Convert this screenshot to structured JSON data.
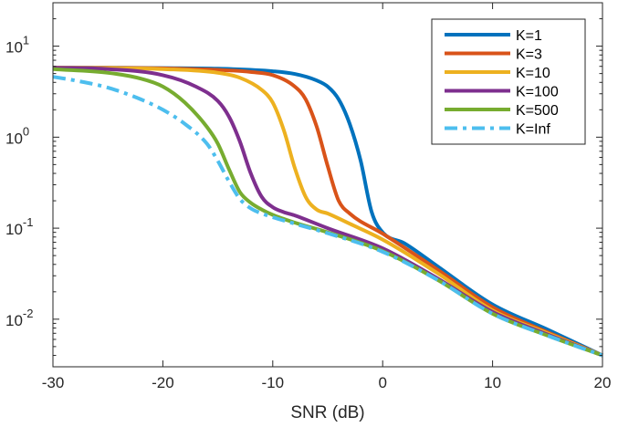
{
  "chart_data": {
    "type": "line",
    "title": "",
    "xlabel": "SNR (dB)",
    "ylabel": "",
    "xlim": [
      -30,
      20
    ],
    "ylim": [
      0.003,
      30
    ],
    "yscale": "log",
    "grid": false,
    "legend_position": "top-right",
    "x_ticks": [
      {
        "value": -30,
        "label": "-30"
      },
      {
        "value": -20,
        "label": "-20"
      },
      {
        "value": -10,
        "label": "-10"
      },
      {
        "value": 0,
        "label": "0"
      },
      {
        "value": 10,
        "label": "10"
      },
      {
        "value": 20,
        "label": "20"
      }
    ],
    "y_ticks": [
      {
        "value": 10,
        "base": "10",
        "exp": "1"
      },
      {
        "value": 1,
        "base": "10",
        "exp": "0"
      },
      {
        "value": 0.1,
        "base": "10",
        "exp": "-1"
      },
      {
        "value": 0.01,
        "base": "10",
        "exp": "-2"
      }
    ],
    "series": [
      {
        "name": "K=1",
        "color": "#0072BD",
        "dash": "solid",
        "x": [
          -30,
          -25,
          -20,
          -15,
          -10,
          -8,
          -6,
          -5,
          -4,
          -3,
          -2,
          -1,
          0,
          2,
          5,
          10,
          15,
          20
        ],
        "y": [
          5.8,
          5.8,
          5.75,
          5.65,
          5.3,
          4.95,
          4.2,
          3.6,
          2.6,
          1.4,
          0.55,
          0.15,
          0.09,
          0.068,
          0.038,
          0.0145,
          0.0077,
          0.004
        ]
      },
      {
        "name": "K=3",
        "color": "#D95319",
        "dash": "solid",
        "x": [
          -30,
          -25,
          -20,
          -15,
          -12,
          -10,
          -8,
          -7,
          -6,
          -5,
          -4,
          -3,
          0,
          5,
          10,
          15,
          20
        ],
        "y": [
          5.8,
          5.78,
          5.7,
          5.5,
          5.2,
          4.8,
          3.6,
          2.6,
          1.3,
          0.48,
          0.2,
          0.145,
          0.087,
          0.035,
          0.0135,
          0.0072,
          0.004
        ]
      },
      {
        "name": "K=10",
        "color": "#EDB120",
        "dash": "solid",
        "x": [
          -30,
          -25,
          -20,
          -15,
          -13,
          -11,
          -10,
          -9,
          -8,
          -7,
          -6,
          -5,
          -3,
          0,
          5,
          10,
          15,
          20
        ],
        "y": [
          5.8,
          5.75,
          5.6,
          5.1,
          4.5,
          3.3,
          2.4,
          1.2,
          0.46,
          0.22,
          0.16,
          0.145,
          0.112,
          0.075,
          0.032,
          0.0125,
          0.007,
          0.004
        ]
      },
      {
        "name": "K=100",
        "color": "#7E2F8E",
        "dash": "solid",
        "x": [
          -30,
          -25,
          -20,
          -17,
          -15,
          -14,
          -13,
          -12,
          -11,
          -10,
          -9,
          -8,
          -5,
          0,
          5,
          10,
          15,
          20
        ],
        "y": [
          5.8,
          5.6,
          4.8,
          3.6,
          2.5,
          1.7,
          0.9,
          0.4,
          0.22,
          0.17,
          0.15,
          0.138,
          0.1,
          0.06,
          0.028,
          0.012,
          0.0068,
          0.004
        ]
      },
      {
        "name": "K=500",
        "color": "#77AC30",
        "dash": "solid",
        "x": [
          -30,
          -25,
          -22,
          -20,
          -18,
          -16,
          -15,
          -14,
          -13,
          -12,
          -11,
          -10,
          -8,
          -5,
          0,
          5,
          10,
          15,
          20
        ],
        "y": [
          5.6,
          5.1,
          4.4,
          3.6,
          2.4,
          1.3,
          0.85,
          0.45,
          0.25,
          0.19,
          0.16,
          0.14,
          0.115,
          0.09,
          0.056,
          0.027,
          0.0115,
          0.0066,
          0.004
        ]
      },
      {
        "name": "K=Inf",
        "color": "#4DBEEE",
        "dash": "dashdot",
        "x": [
          -30,
          -28,
          -25,
          -22,
          -20,
          -18,
          -16,
          -15,
          -14,
          -13,
          -12,
          -11,
          -10,
          -8,
          -5,
          0,
          5,
          10,
          15,
          20
        ],
        "y": [
          4.6,
          4.2,
          3.5,
          2.6,
          2.0,
          1.4,
          0.85,
          0.55,
          0.33,
          0.21,
          0.165,
          0.145,
          0.132,
          0.112,
          0.088,
          0.055,
          0.027,
          0.0115,
          0.0066,
          0.004
        ]
      }
    ]
  }
}
